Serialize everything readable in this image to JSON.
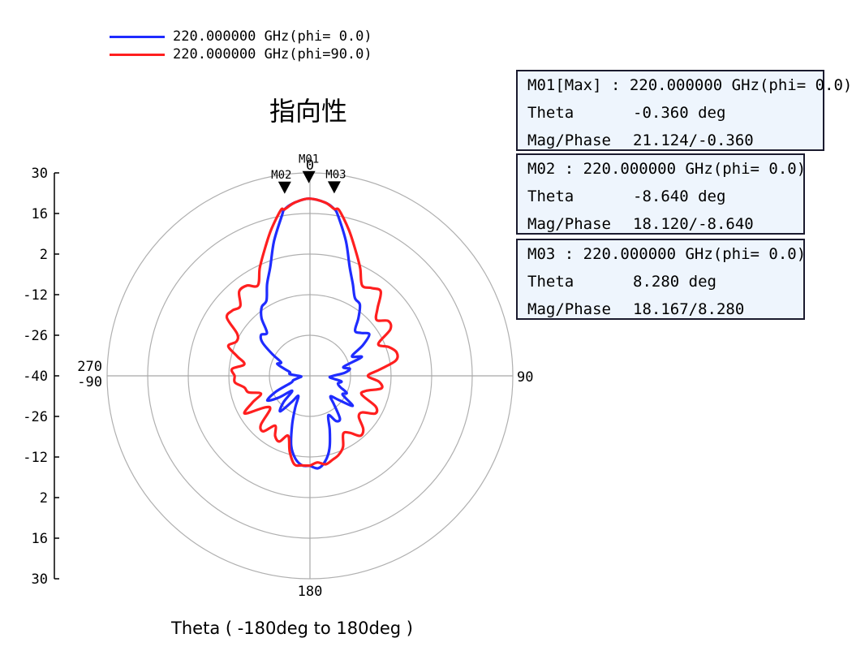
{
  "title": "指向性",
  "xlabel": "Theta ( -180deg to 180deg )",
  "legend": [
    {
      "label": "220.000000 GHz(phi= 0.0)",
      "color": "#1f2cff"
    },
    {
      "label": "220.000000 GHz(phi=90.0)",
      "color": "#ff1f1f"
    }
  ],
  "markers": [
    {
      "id": "M01",
      "header": "M01[Max] : 220.000000 GHz(phi= 0.0)",
      "theta_label": "Theta",
      "theta": "-0.360 deg",
      "mag_label": "Mag/Phase",
      "mag": "21.124/-0.360"
    },
    {
      "id": "M02",
      "header": "M02 : 220.000000 GHz(phi= 0.0)",
      "theta_label": "Theta",
      "theta": "-8.640 deg",
      "mag_label": "Mag/Phase",
      "mag": "18.120/-8.640"
    },
    {
      "id": "M03",
      "header": "M03 : 220.000000 GHz(phi= 0.0)",
      "theta_label": "Theta",
      "theta": "8.280 deg",
      "mag_label": "Mag/Phase",
      "mag": "18.167/8.280"
    }
  ],
  "chart_data": {
    "type": "polar",
    "title": "指向性",
    "xlabel": "Theta ( -180deg to 180deg )",
    "r_range": [
      -40,
      30
    ],
    "r_rings": [
      -26,
      -12,
      2,
      16,
      30
    ],
    "r_tick_labels": [
      "30",
      "16",
      "2",
      "-12",
      "-26",
      "-40",
      "-26",
      "-12",
      "2",
      "16",
      "30"
    ],
    "angle_labels": [
      {
        "angle": 0,
        "text": "0"
      },
      {
        "angle": 90,
        "text": "90"
      },
      {
        "angle": 180,
        "text": "180"
      },
      {
        "angle": 270,
        "text": "270\n-90"
      }
    ],
    "grid": true,
    "series": [
      {
        "name": "220.000000 GHz(phi= 0.0)",
        "color": "#1f2cff",
        "points": [
          [
            -180,
            -9
          ],
          [
            -175,
            -9
          ],
          [
            -170,
            -11
          ],
          [
            -165,
            -15
          ],
          [
            -160,
            -22
          ],
          [
            -155,
            -28
          ],
          [
            -150,
            -32
          ],
          [
            -145,
            -29
          ],
          [
            -140,
            -24
          ],
          [
            -135,
            -27
          ],
          [
            -130,
            -32
          ],
          [
            -125,
            -27
          ],
          [
            -120,
            -23
          ],
          [
            -115,
            -27
          ],
          [
            -110,
            -33
          ],
          [
            -105,
            -34
          ],
          [
            -100,
            -36
          ],
          [
            -95,
            -37
          ],
          [
            -90,
            -36
          ],
          [
            -85,
            -33
          ],
          [
            -80,
            -33
          ],
          [
            -75,
            -31
          ],
          [
            -70,
            -28
          ],
          [
            -65,
            -29
          ],
          [
            -60,
            -25
          ],
          [
            -55,
            -20
          ],
          [
            -50,
            -18
          ],
          [
            -45,
            -19
          ],
          [
            -40,
            -14
          ],
          [
            -35,
            -11
          ],
          [
            -30,
            -10
          ],
          [
            -25,
            -5
          ],
          [
            -20,
            0
          ],
          [
            -15,
            8
          ],
          [
            -10,
            16
          ],
          [
            -8.64,
            18.12
          ],
          [
            -5,
            20
          ],
          [
            -0.36,
            21.12
          ],
          [
            5,
            20
          ],
          [
            8.28,
            18.17
          ],
          [
            10,
            16
          ],
          [
            15,
            8
          ],
          [
            20,
            0
          ],
          [
            25,
            -5
          ],
          [
            30,
            -9
          ],
          [
            35,
            -10
          ],
          [
            40,
            -14
          ],
          [
            45,
            -18
          ],
          [
            50,
            -17
          ],
          [
            55,
            -15
          ],
          [
            60,
            -19
          ],
          [
            65,
            -24
          ],
          [
            70,
            -21
          ],
          [
            75,
            -28
          ],
          [
            80,
            -26
          ],
          [
            85,
            -28
          ],
          [
            90,
            -32
          ],
          [
            95,
            -33
          ],
          [
            100,
            -29
          ],
          [
            105,
            -30
          ],
          [
            110,
            -29
          ],
          [
            115,
            -26
          ],
          [
            120,
            -27
          ],
          [
            125,
            -22
          ],
          [
            130,
            -27
          ],
          [
            135,
            -30
          ],
          [
            140,
            -27
          ],
          [
            145,
            -22
          ],
          [
            150,
            -22
          ],
          [
            155,
            -25
          ],
          [
            160,
            -20
          ],
          [
            165,
            -14
          ],
          [
            170,
            -10
          ],
          [
            175,
            -8
          ],
          [
            180,
            -9
          ]
        ]
      },
      {
        "name": "220.000000 GHz(phi=90.0)",
        "color": "#ff1f1f",
        "points": [
          [
            -180,
            -9
          ],
          [
            -175,
            -9
          ],
          [
            -170,
            -9
          ],
          [
            -165,
            -13
          ],
          [
            -160,
            -18
          ],
          [
            -155,
            -15
          ],
          [
            -150,
            -16
          ],
          [
            -145,
            -19
          ],
          [
            -140,
            -15
          ],
          [
            -135,
            -16
          ],
          [
            -130,
            -22
          ],
          [
            -125,
            -21
          ],
          [
            -120,
            -14
          ],
          [
            -115,
            -18
          ],
          [
            -110,
            -22
          ],
          [
            -105,
            -18
          ],
          [
            -100,
            -17
          ],
          [
            -95,
            -14
          ],
          [
            -90,
            -14
          ],
          [
            -85,
            -13
          ],
          [
            -80,
            -17
          ],
          [
            -75,
            -14
          ],
          [
            -70,
            -10
          ],
          [
            -65,
            -12
          ],
          [
            -60,
            -11
          ],
          [
            -55,
            -5
          ],
          [
            -50,
            -5
          ],
          [
            -45,
            -6
          ],
          [
            -40,
            -2
          ],
          [
            -35,
            -2
          ],
          [
            -30,
            -4
          ],
          [
            -25,
            1
          ],
          [
            -20,
            6
          ],
          [
            -15,
            12
          ],
          [
            -10,
            18
          ],
          [
            -8.64,
            18.12
          ],
          [
            -5,
            20
          ],
          [
            -0.36,
            21.12
          ],
          [
            5,
            20
          ],
          [
            8.28,
            18.17
          ],
          [
            10,
            18
          ],
          [
            15,
            12
          ],
          [
            20,
            6
          ],
          [
            25,
            1
          ],
          [
            30,
            -4
          ],
          [
            35,
            -3
          ],
          [
            40,
            -2
          ],
          [
            45,
            -7
          ],
          [
            50,
            -10
          ],
          [
            55,
            -7
          ],
          [
            60,
            -8
          ],
          [
            65,
            -14
          ],
          [
            70,
            -11
          ],
          [
            75,
            -9
          ],
          [
            80,
            -10
          ],
          [
            85,
            -16
          ],
          [
            90,
            -20
          ],
          [
            95,
            -16
          ],
          [
            100,
            -15
          ],
          [
            105,
            -20
          ],
          [
            110,
            -21
          ],
          [
            115,
            -15
          ],
          [
            120,
            -14
          ],
          [
            125,
            -18
          ],
          [
            130,
            -18
          ],
          [
            135,
            -14
          ],
          [
            140,
            -13
          ],
          [
            145,
            -16
          ],
          [
            150,
            -17
          ],
          [
            155,
            -13
          ],
          [
            160,
            -11
          ],
          [
            165,
            -10
          ],
          [
            170,
            -9
          ],
          [
            175,
            -10
          ],
          [
            180,
            -9
          ]
        ]
      }
    ],
    "marker_points": [
      {
        "id": "M01",
        "theta": -0.36,
        "r": 21.124
      },
      {
        "id": "M02",
        "theta": -8.64,
        "r": 18.12
      },
      {
        "id": "M03",
        "theta": 8.28,
        "r": 18.167
      }
    ]
  }
}
